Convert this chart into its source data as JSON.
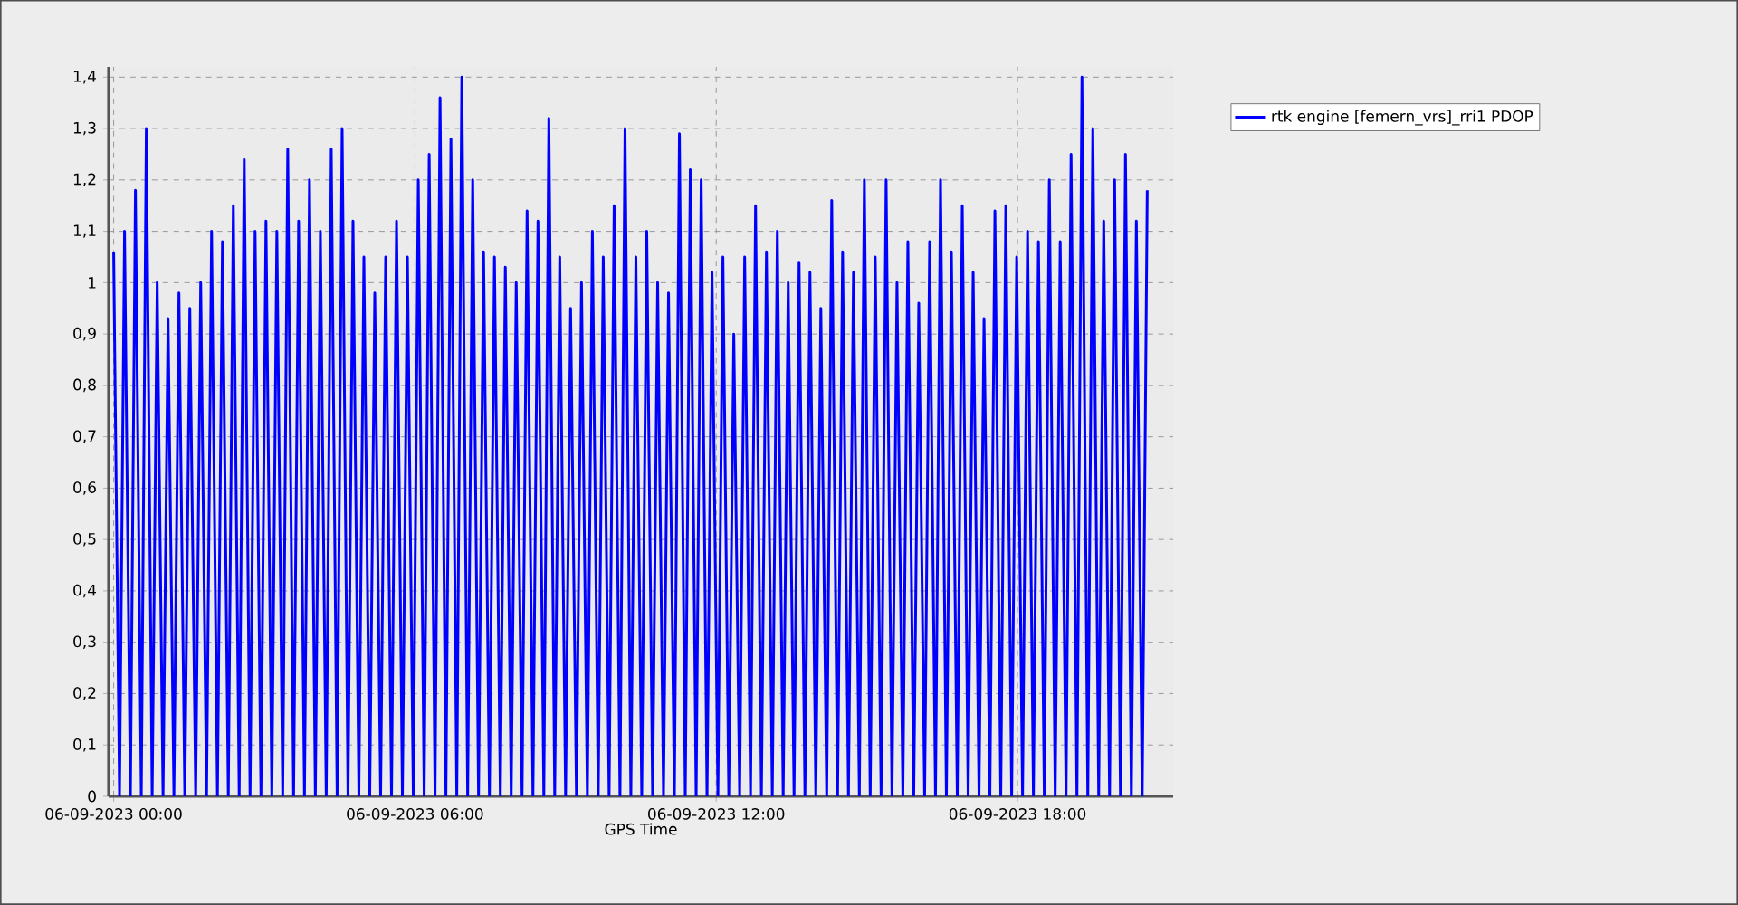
{
  "chart_data": {
    "type": "line",
    "xlabel": "GPS Time",
    "xlim": [
      "2023-09-05T23:54",
      "2023-09-06T21:06"
    ],
    "ylim": [
      0,
      1.42
    ],
    "xticks": [
      {
        "value": "2023-09-06T00:00",
        "label": "06-09-2023 00:00"
      },
      {
        "value": "2023-09-06T06:00",
        "label": "06-09-2023 06:00"
      },
      {
        "value": "2023-09-06T12:00",
        "label": "06-09-2023 12:00"
      },
      {
        "value": "2023-09-06T18:00",
        "label": "06-09-2023 18:00"
      }
    ],
    "yticks": [
      0,
      {
        "value": 0.1,
        "label": "0,1"
      },
      {
        "value": 0.2,
        "label": "0,2"
      },
      {
        "value": 0.3,
        "label": "0,3"
      },
      {
        "value": 0.4,
        "label": "0,4"
      },
      {
        "value": 0.5,
        "label": "0,5"
      },
      {
        "value": 0.6,
        "label": "0,6"
      },
      {
        "value": 0.7,
        "label": "0,7"
      },
      {
        "value": 0.8,
        "label": "0,8"
      },
      {
        "value": 0.9,
        "label": "0,9"
      },
      1,
      {
        "value": 1.1,
        "label": "1,1"
      },
      {
        "value": 1.2,
        "label": "1,2"
      },
      {
        "value": 1.3,
        "label": "1,3"
      },
      {
        "value": 1.4,
        "label": "1,4"
      }
    ],
    "grid": true,
    "legend": "right",
    "marker": "none",
    "line_style": "solid",
    "series": [
      {
        "name": "rtk engine [femern_vrs]_rri1 PDOP",
        "color": "#0000ff",
        "x": [
          "2023-09-06T00:00",
          "2023-09-06T00:07",
          "2023-09-06T00:13",
          "2023-09-06T00:20",
          "2023-09-06T00:26",
          "2023-09-06T00:33",
          "2023-09-06T00:39",
          "2023-09-06T00:46",
          "2023-09-06T00:52",
          "2023-09-06T00:59",
          "2023-09-06T01:05",
          "2023-09-06T01:12",
          "2023-09-06T01:18",
          "2023-09-06T01:25",
          "2023-09-06T01:31",
          "2023-09-06T01:38",
          "2023-09-06T01:44",
          "2023-09-06T01:51",
          "2023-09-06T01:57",
          "2023-09-06T02:04",
          "2023-09-06T02:10",
          "2023-09-06T02:17",
          "2023-09-06T02:23",
          "2023-09-06T02:30",
          "2023-09-06T02:36",
          "2023-09-06T02:43",
          "2023-09-06T02:49",
          "2023-09-06T02:56",
          "2023-09-06T03:02",
          "2023-09-06T03:09",
          "2023-09-06T03:15",
          "2023-09-06T03:22",
          "2023-09-06T03:28",
          "2023-09-06T03:35",
          "2023-09-06T03:41",
          "2023-09-06T03:48",
          "2023-09-06T03:54",
          "2023-09-06T04:01",
          "2023-09-06T04:07",
          "2023-09-06T04:14",
          "2023-09-06T04:20",
          "2023-09-06T04:27",
          "2023-09-06T04:33",
          "2023-09-06T04:40",
          "2023-09-06T04:46",
          "2023-09-06T04:53",
          "2023-09-06T04:59",
          "2023-09-06T05:06",
          "2023-09-06T05:12",
          "2023-09-06T05:19",
          "2023-09-06T05:25",
          "2023-09-06T05:32",
          "2023-09-06T05:38",
          "2023-09-06T05:45",
          "2023-09-06T05:51",
          "2023-09-06T05:58",
          "2023-09-06T06:04",
          "2023-09-06T06:11",
          "2023-09-06T06:17",
          "2023-09-06T06:24",
          "2023-09-06T06:30",
          "2023-09-06T06:37",
          "2023-09-06T06:43",
          "2023-09-06T06:50",
          "2023-09-06T06:56",
          "2023-09-06T07:03",
          "2023-09-06T07:09",
          "2023-09-06T07:16",
          "2023-09-06T07:22",
          "2023-09-06T07:29",
          "2023-09-06T07:35",
          "2023-09-06T07:42",
          "2023-09-06T07:48",
          "2023-09-06T07:55",
          "2023-09-06T08:01",
          "2023-09-06T08:08",
          "2023-09-06T08:14",
          "2023-09-06T08:21",
          "2023-09-06T08:27",
          "2023-09-06T08:34",
          "2023-09-06T08:40",
          "2023-09-06T08:47",
          "2023-09-06T08:53",
          "2023-09-06T09:00",
          "2023-09-06T09:06",
          "2023-09-06T09:13",
          "2023-09-06T09:19",
          "2023-09-06T09:26",
          "2023-09-06T09:32",
          "2023-09-06T09:39",
          "2023-09-06T09:45",
          "2023-09-06T09:52",
          "2023-09-06T09:58",
          "2023-09-06T10:05",
          "2023-09-06T10:11",
          "2023-09-06T10:18",
          "2023-09-06T10:24",
          "2023-09-06T10:31",
          "2023-09-06T10:37",
          "2023-09-06T10:44",
          "2023-09-06T10:50",
          "2023-09-06T10:57",
          "2023-09-06T11:03",
          "2023-09-06T11:10",
          "2023-09-06T11:16",
          "2023-09-06T11:23",
          "2023-09-06T11:29",
          "2023-09-06T11:36",
          "2023-09-06T11:42",
          "2023-09-06T11:49",
          "2023-09-06T11:55",
          "2023-09-06T12:02",
          "2023-09-06T12:08",
          "2023-09-06T12:15",
          "2023-09-06T12:21",
          "2023-09-06T12:28",
          "2023-09-06T12:34",
          "2023-09-06T12:41",
          "2023-09-06T12:47",
          "2023-09-06T12:54",
          "2023-09-06T13:00",
          "2023-09-06T13:07",
          "2023-09-06T13:13",
          "2023-09-06T13:20",
          "2023-09-06T13:26",
          "2023-09-06T13:33",
          "2023-09-06T13:39",
          "2023-09-06T13:46",
          "2023-09-06T13:52",
          "2023-09-06T13:59",
          "2023-09-06T14:05",
          "2023-09-06T14:12",
          "2023-09-06T14:18",
          "2023-09-06T14:25",
          "2023-09-06T14:31",
          "2023-09-06T14:38",
          "2023-09-06T14:44",
          "2023-09-06T14:51",
          "2023-09-06T14:57",
          "2023-09-06T15:04",
          "2023-09-06T15:10",
          "2023-09-06T15:17",
          "2023-09-06T15:23",
          "2023-09-06T15:30",
          "2023-09-06T15:36",
          "2023-09-06T15:43",
          "2023-09-06T15:49",
          "2023-09-06T15:56",
          "2023-09-06T16:02",
          "2023-09-06T16:09",
          "2023-09-06T16:15",
          "2023-09-06T16:22",
          "2023-09-06T16:28",
          "2023-09-06T16:35",
          "2023-09-06T16:41",
          "2023-09-06T16:48",
          "2023-09-06T16:54",
          "2023-09-06T17:01",
          "2023-09-06T17:07",
          "2023-09-06T17:14",
          "2023-09-06T17:20",
          "2023-09-06T17:27",
          "2023-09-06T17:33",
          "2023-09-06T17:40",
          "2023-09-06T17:46",
          "2023-09-06T17:53",
          "2023-09-06T17:59",
          "2023-09-06T18:06",
          "2023-09-06T18:12",
          "2023-09-06T18:19",
          "2023-09-06T18:25",
          "2023-09-06T18:32",
          "2023-09-06T18:38",
          "2023-09-06T18:45",
          "2023-09-06T18:51",
          "2023-09-06T18:58",
          "2023-09-06T19:04",
          "2023-09-06T19:11",
          "2023-09-06T19:17",
          "2023-09-06T19:24",
          "2023-09-06T19:30",
          "2023-09-06T19:37",
          "2023-09-06T19:43",
          "2023-09-06T19:50",
          "2023-09-06T19:56",
          "2023-09-06T20:03",
          "2023-09-06T20:09",
          "2023-09-06T20:16",
          "2023-09-06T20:22",
          "2023-09-06T20:29",
          "2023-09-06T20:35"
        ],
        "values": [
          1.06,
          0,
          1.1,
          0,
          1.18,
          0,
          1.3,
          0,
          1.0,
          0,
          0.93,
          0,
          0.98,
          0,
          0.95,
          0,
          1.0,
          0,
          1.1,
          0,
          1.08,
          0,
          1.15,
          0,
          1.24,
          0,
          1.1,
          0,
          1.12,
          0,
          1.1,
          0,
          1.26,
          0,
          1.12,
          0,
          1.2,
          0,
          1.1,
          0,
          1.26,
          0,
          1.3,
          0,
          1.12,
          0,
          1.05,
          0,
          0.98,
          0,
          1.05,
          0,
          1.12,
          0,
          1.05,
          0,
          1.2,
          0,
          1.25,
          0,
          1.36,
          0,
          1.28,
          0,
          1.4,
          0,
          1.2,
          0,
          1.06,
          0,
          1.05,
          0,
          1.03,
          0,
          1.0,
          0,
          1.14,
          0,
          1.12,
          0,
          1.32,
          0,
          1.05,
          0,
          0.95,
          0,
          1.0,
          0,
          1.1,
          0,
          1.05,
          0,
          1.15,
          0,
          1.3,
          0,
          1.05,
          0,
          1.1,
          0,
          1.0,
          0,
          0.98,
          0,
          1.29,
          0,
          1.22,
          0,
          1.2,
          0,
          1.02,
          0,
          1.05,
          0,
          0.9,
          0,
          1.05,
          0,
          1.15,
          0,
          1.06,
          0,
          1.1,
          0,
          1.0,
          0,
          1.04,
          0,
          1.02,
          0,
          0.95,
          0,
          1.16,
          0,
          1.06,
          0,
          1.02,
          0,
          1.2,
          0,
          1.05,
          0,
          1.2,
          0,
          1.0,
          0,
          1.08,
          0,
          0.96,
          0,
          1.08,
          0,
          1.2,
          0,
          1.06,
          0,
          1.15,
          0,
          1.02,
          0,
          0.93,
          0,
          1.14,
          0,
          1.15,
          0,
          1.05,
          0,
          1.1,
          0,
          1.08,
          0,
          1.2,
          0,
          1.08,
          0,
          1.25,
          0,
          1.4,
          0,
          1.3,
          0,
          1.12,
          0,
          1.2,
          0,
          1.25,
          0,
          1.12,
          0,
          1.18
        ]
      }
    ]
  }
}
